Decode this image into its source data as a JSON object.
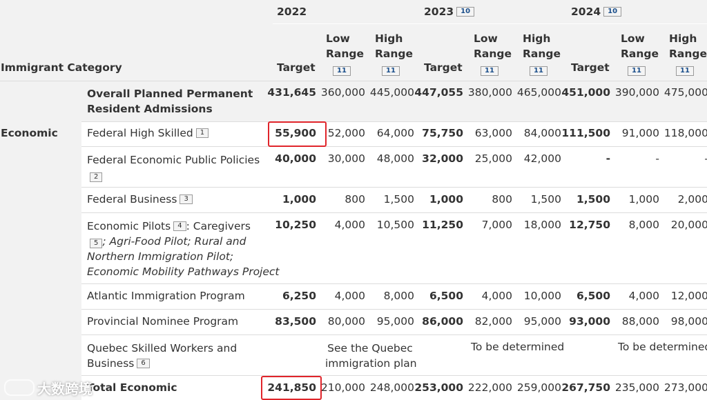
{
  "header": {
    "years": [
      {
        "label": "2022",
        "ref": ""
      },
      {
        "label": "2023",
        "ref": "10"
      },
      {
        "label": "2024",
        "ref": "10"
      }
    ],
    "category_label": "Immigrant Category",
    "target_label": "Target",
    "low_range_line1": "Low",
    "low_range_line2": "Range",
    "high_range_line1": "High",
    "high_range_line2": "Range",
    "range_ref": "11"
  },
  "overall": {
    "label_line1": "Overall Planned Permanent",
    "label_line2": "Resident Admissions",
    "values": [
      "431,645",
      "360,000",
      "445,000",
      "447,055",
      "380,000",
      "465,000",
      "451,000",
      "390,000",
      "475,000"
    ]
  },
  "category": "Economic",
  "rows": [
    {
      "label": "Federal High Skilled",
      "ref": "1",
      "values": [
        "55,900",
        "52,000",
        "64,000",
        "75,750",
        "63,000",
        "84,000",
        "111,500",
        "91,000",
        "118,000"
      ]
    },
    {
      "label": "Federal Economic Public Policies",
      "ref": "2",
      "values": [
        "40,000",
        "30,000",
        "48,000",
        "32,000",
        "25,000",
        "42,000",
        "-",
        "-",
        "-"
      ]
    },
    {
      "label": "Federal Business",
      "ref": "3",
      "values": [
        "1,000",
        "800",
        "1,500",
        "1,000",
        "800",
        "1,500",
        "1,500",
        "1,000",
        "2,000"
      ]
    },
    {
      "label": "Economic Pilots",
      "ref": "4",
      "label_suffix": ": Caregivers",
      "ref2": "5",
      "italic_lines": [
        "; Agri-Food Pilot; Rural and",
        "Northern Immigration Pilot;",
        "Economic Mobility Pathways Project"
      ],
      "values": [
        "10,250",
        "4,000",
        "10,500",
        "11,250",
        "7,000",
        "18,000",
        "12,750",
        "8,000",
        "20,000"
      ]
    },
    {
      "label": "Atlantic Immigration Program",
      "values": [
        "6,250",
        "4,000",
        "8,000",
        "6,500",
        "4,000",
        "10,000",
        "6,500",
        "4,000",
        "12,000"
      ]
    },
    {
      "label": "Provincial Nominee Program",
      "values": [
        "83,500",
        "80,000",
        "95,000",
        "86,000",
        "82,000",
        "95,000",
        "93,000",
        "88,000",
        "98,000"
      ]
    },
    {
      "label_line1": "Quebec Skilled Workers and",
      "label_line2": "Business",
      "ref": "6",
      "note_2022_line1": "See the Quebec",
      "note_2022_line2": "immigration plan",
      "note_2023": "To be determined",
      "note_2024": "To be determined"
    }
  ],
  "total": {
    "label": "Total Economic",
    "values": [
      "241,850",
      "210,000",
      "248,000",
      "253,000",
      "222,000",
      "259,000",
      "267,750",
      "235,000",
      "273,000"
    ]
  },
  "watermark": "大数跨境",
  "colors": {
    "header_bg": "#f2f2f2",
    "highlight": "#e0242a",
    "ref_blue": "#1a4e8a"
  }
}
